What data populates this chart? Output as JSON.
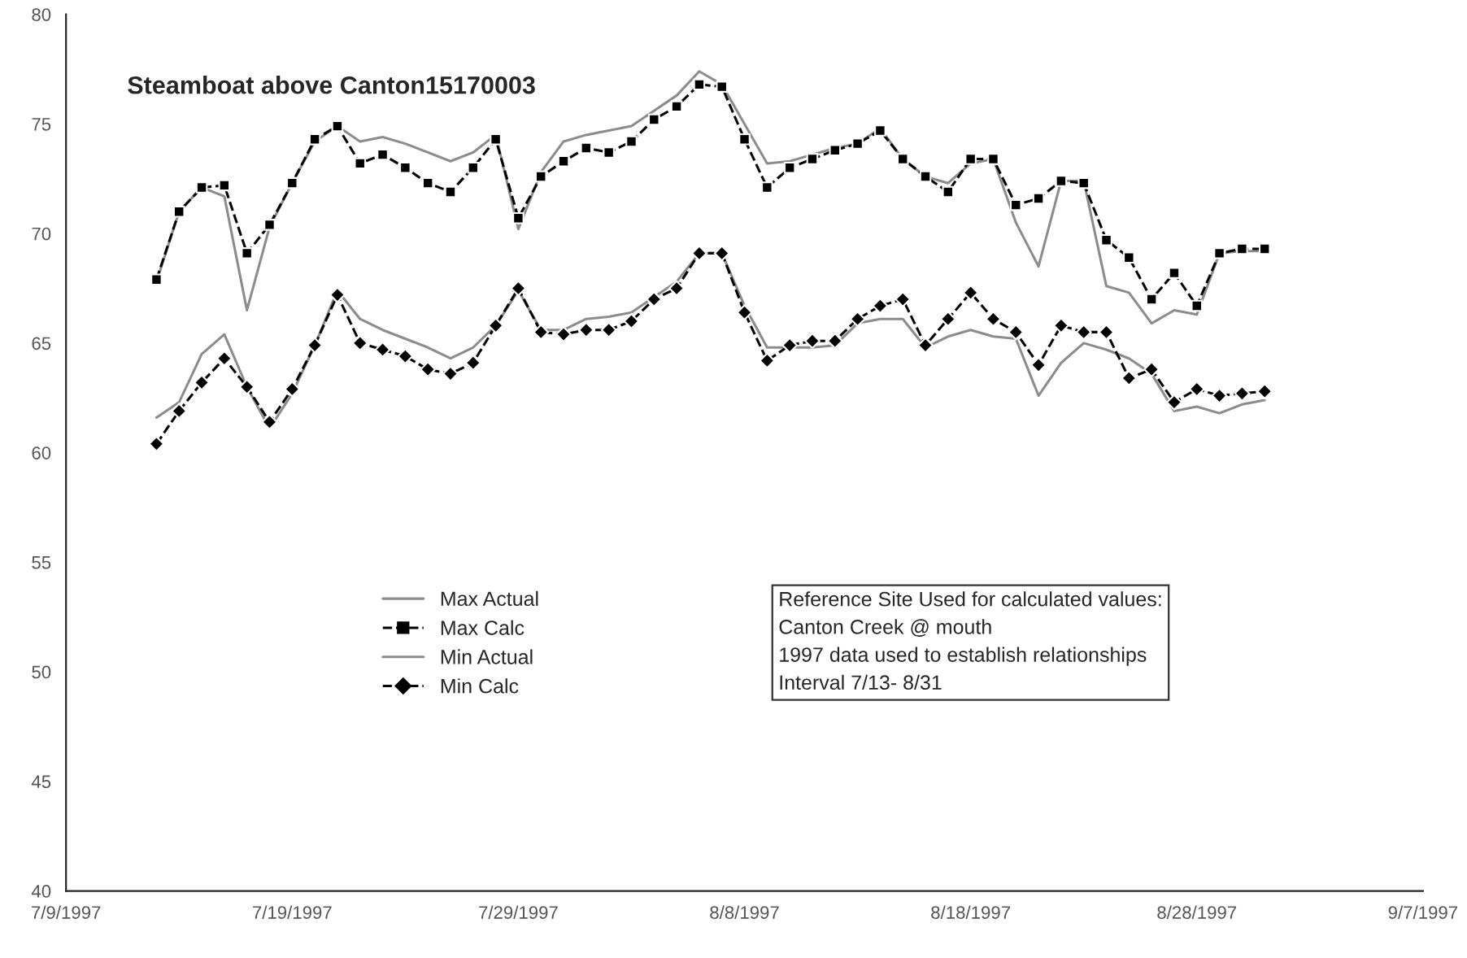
{
  "chart_data": {
    "type": "line",
    "title": "Steamboat above Canton15170003",
    "x": [
      "1997-07-13",
      "1997-07-14",
      "1997-07-15",
      "1997-07-16",
      "1997-07-17",
      "1997-07-18",
      "1997-07-19",
      "1997-07-20",
      "1997-07-21",
      "1997-07-22",
      "1997-07-23",
      "1997-07-24",
      "1997-07-25",
      "1997-07-26",
      "1997-07-27",
      "1997-07-28",
      "1997-07-29",
      "1997-07-30",
      "1997-07-31",
      "1997-08-01",
      "1997-08-02",
      "1997-08-03",
      "1997-08-04",
      "1997-08-05",
      "1997-08-06",
      "1997-08-07",
      "1997-08-08",
      "1997-08-09",
      "1997-08-10",
      "1997-08-11",
      "1997-08-12",
      "1997-08-13",
      "1997-08-14",
      "1997-08-15",
      "1997-08-16",
      "1997-08-17",
      "1997-08-18",
      "1997-08-19",
      "1997-08-20",
      "1997-08-21",
      "1997-08-22",
      "1997-08-23",
      "1997-08-24",
      "1997-08-25",
      "1997-08-26",
      "1997-08-27",
      "1997-08-28",
      "1997-08-29",
      "1997-08-30",
      "1997-08-31"
    ],
    "series": [
      {
        "name": "Max Actual",
        "color": "#8c8c8c",
        "marker": "none",
        "line_style": "solid",
        "values": [
          67.8,
          71.0,
          72.1,
          71.7,
          66.5,
          70.3,
          72.3,
          74.2,
          74.9,
          74.2,
          74.4,
          74.1,
          73.7,
          73.3,
          73.7,
          74.5,
          70.2,
          72.8,
          74.2,
          74.5,
          74.7,
          74.9,
          75.6,
          76.3,
          77.4,
          76.8,
          75.0,
          73.2,
          73.3,
          73.6,
          73.9,
          74.1,
          74.8,
          73.4,
          72.6,
          72.3,
          73.2,
          73.4,
          70.5,
          68.5,
          72.4,
          72.4,
          67.6,
          67.3,
          65.9,
          66.5,
          66.3,
          69.1,
          69.2,
          69.2
        ]
      },
      {
        "name": "Max Calc",
        "color": "#000000",
        "marker": "square",
        "line_style": "dashed",
        "values": [
          67.9,
          71.0,
          72.1,
          72.2,
          69.1,
          70.4,
          72.3,
          74.3,
          74.9,
          73.2,
          73.6,
          73.0,
          72.3,
          71.9,
          73.0,
          74.3,
          70.7,
          72.6,
          73.3,
          73.9,
          73.7,
          74.2,
          75.2,
          75.8,
          76.8,
          76.7,
          74.3,
          72.1,
          73.0,
          73.4,
          73.8,
          74.1,
          74.7,
          73.4,
          72.6,
          71.9,
          73.4,
          73.4,
          71.3,
          71.6,
          72.4,
          72.3,
          69.7,
          68.9,
          67.0,
          68.2,
          66.7,
          69.1,
          69.3,
          69.3
        ]
      },
      {
        "name": "Min Actual",
        "color": "#8c8c8c",
        "marker": "none",
        "line_style": "solid",
        "values": [
          61.6,
          62.3,
          64.5,
          65.4,
          63.0,
          61.1,
          62.7,
          64.9,
          67.4,
          66.1,
          65.6,
          65.2,
          64.8,
          64.3,
          64.8,
          65.8,
          67.4,
          65.6,
          65.6,
          66.1,
          66.2,
          66.4,
          67.1,
          67.8,
          69.1,
          69.1,
          66.7,
          64.8,
          64.8,
          64.8,
          64.9,
          65.9,
          66.1,
          66.1,
          64.8,
          65.3,
          65.6,
          65.3,
          65.2,
          62.6,
          64.1,
          65.0,
          64.7,
          64.3,
          63.6,
          61.9,
          62.1,
          61.8,
          62.2,
          62.4
        ]
      },
      {
        "name": "Min Calc",
        "color": "#000000",
        "marker": "diamond",
        "line_style": "dashed",
        "values": [
          60.4,
          61.9,
          63.2,
          64.3,
          63.0,
          61.4,
          62.9,
          64.9,
          67.2,
          65.0,
          64.7,
          64.4,
          63.8,
          63.6,
          64.1,
          65.8,
          67.5,
          65.5,
          65.4,
          65.6,
          65.6,
          66.0,
          67.0,
          67.5,
          69.1,
          69.1,
          66.4,
          64.2,
          64.9,
          65.1,
          65.1,
          66.1,
          66.7,
          67.0,
          64.9,
          66.1,
          67.3,
          66.1,
          65.5,
          64.0,
          65.8,
          65.5,
          65.5,
          63.4,
          63.8,
          62.3,
          62.9,
          62.6,
          62.7,
          62.8
        ]
      }
    ],
    "xlim": [
      "1997-07-09",
      "1997-09-07"
    ],
    "xticks": [
      {
        "value": "1997-07-09",
        "label": "7/9/1997"
      },
      {
        "value": "1997-07-19",
        "label": "7/19/1997"
      },
      {
        "value": "1997-07-29",
        "label": "7/29/1997"
      },
      {
        "value": "1997-08-08",
        "label": "8/8/1997"
      },
      {
        "value": "1997-08-18",
        "label": "8/18/1997"
      },
      {
        "value": "1997-08-28",
        "label": "8/28/1997"
      },
      {
        "value": "1997-09-07",
        "label": "9/7/1997"
      }
    ],
    "ylim": [
      40,
      80
    ],
    "yticks": [
      40,
      45,
      50,
      55,
      60,
      65,
      70,
      75,
      80
    ],
    "grid": false,
    "legend": "bottom left",
    "annotations": [
      "Reference Site Used for calculated values:\nCanton Creek @ mouth\n1997 data used to establish relationships\nInterval 7/13- 8/31"
    ]
  }
}
